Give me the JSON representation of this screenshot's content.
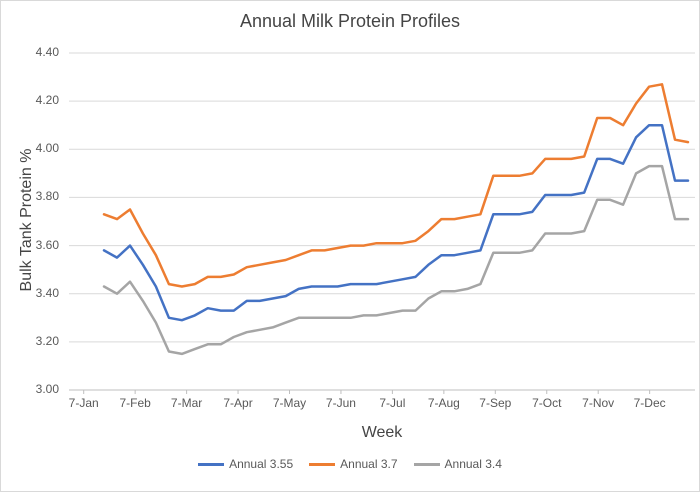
{
  "chart_data": {
    "type": "line",
    "title": "Annual Milk Protein Profiles",
    "xlabel": "Week",
    "ylabel": "Bulk Tank Protein %",
    "ylim": [
      3.0,
      4.4
    ],
    "ytick_step": 0.2,
    "ytick_labels": [
      "3.00",
      "3.20",
      "3.40",
      "3.60",
      "3.80",
      "4.00",
      "4.20",
      "4.40"
    ],
    "x_tick_labels": [
      "7-Jan",
      "7-Feb",
      "7-Mar",
      "7-Apr",
      "7-May",
      "7-Jun",
      "7-Jul",
      "7-Aug",
      "7-Sep",
      "7-Oct",
      "7-Nov",
      "7-Dec"
    ],
    "grid": true,
    "legend_position": "bottom",
    "gridline_color": "#d9d9d9",
    "axis_color": "#bfbfbf",
    "series": [
      {
        "name": "Annual 3.55",
        "color": "#4472c4",
        "values": [
          3.58,
          3.55,
          3.6,
          3.52,
          3.43,
          3.3,
          3.29,
          3.31,
          3.34,
          3.33,
          3.33,
          3.37,
          3.37,
          3.38,
          3.39,
          3.42,
          3.43,
          3.43,
          3.43,
          3.44,
          3.44,
          3.44,
          3.45,
          3.46,
          3.47,
          3.52,
          3.56,
          3.56,
          3.57,
          3.58,
          3.73,
          3.73,
          3.73,
          3.74,
          3.81,
          3.81,
          3.81,
          3.82,
          3.96,
          3.96,
          3.94,
          4.05,
          4.1,
          4.1,
          3.87,
          3.87
        ]
      },
      {
        "name": "Annual 3.7",
        "color": "#ed7d31",
        "values": [
          3.73,
          3.71,
          3.75,
          3.65,
          3.56,
          3.44,
          3.43,
          3.44,
          3.47,
          3.47,
          3.48,
          3.51,
          3.52,
          3.53,
          3.54,
          3.56,
          3.58,
          3.58,
          3.59,
          3.6,
          3.6,
          3.61,
          3.61,
          3.61,
          3.62,
          3.66,
          3.71,
          3.71,
          3.72,
          3.73,
          3.89,
          3.89,
          3.89,
          3.9,
          3.96,
          3.96,
          3.96,
          3.97,
          4.13,
          4.13,
          4.1,
          4.19,
          4.26,
          4.27,
          4.04,
          4.03
        ]
      },
      {
        "name": "Annual 3.4",
        "color": "#a5a5a5",
        "values": [
          3.43,
          3.4,
          3.45,
          3.37,
          3.28,
          3.16,
          3.15,
          3.17,
          3.19,
          3.19,
          3.22,
          3.24,
          3.25,
          3.26,
          3.28,
          3.3,
          3.3,
          3.3,
          3.3,
          3.3,
          3.31,
          3.31,
          3.32,
          3.33,
          3.33,
          3.38,
          3.41,
          3.41,
          3.42,
          3.44,
          3.57,
          3.57,
          3.57,
          3.58,
          3.65,
          3.65,
          3.65,
          3.66,
          3.79,
          3.79,
          3.77,
          3.9,
          3.93,
          3.93,
          3.71,
          3.71
        ]
      }
    ]
  }
}
